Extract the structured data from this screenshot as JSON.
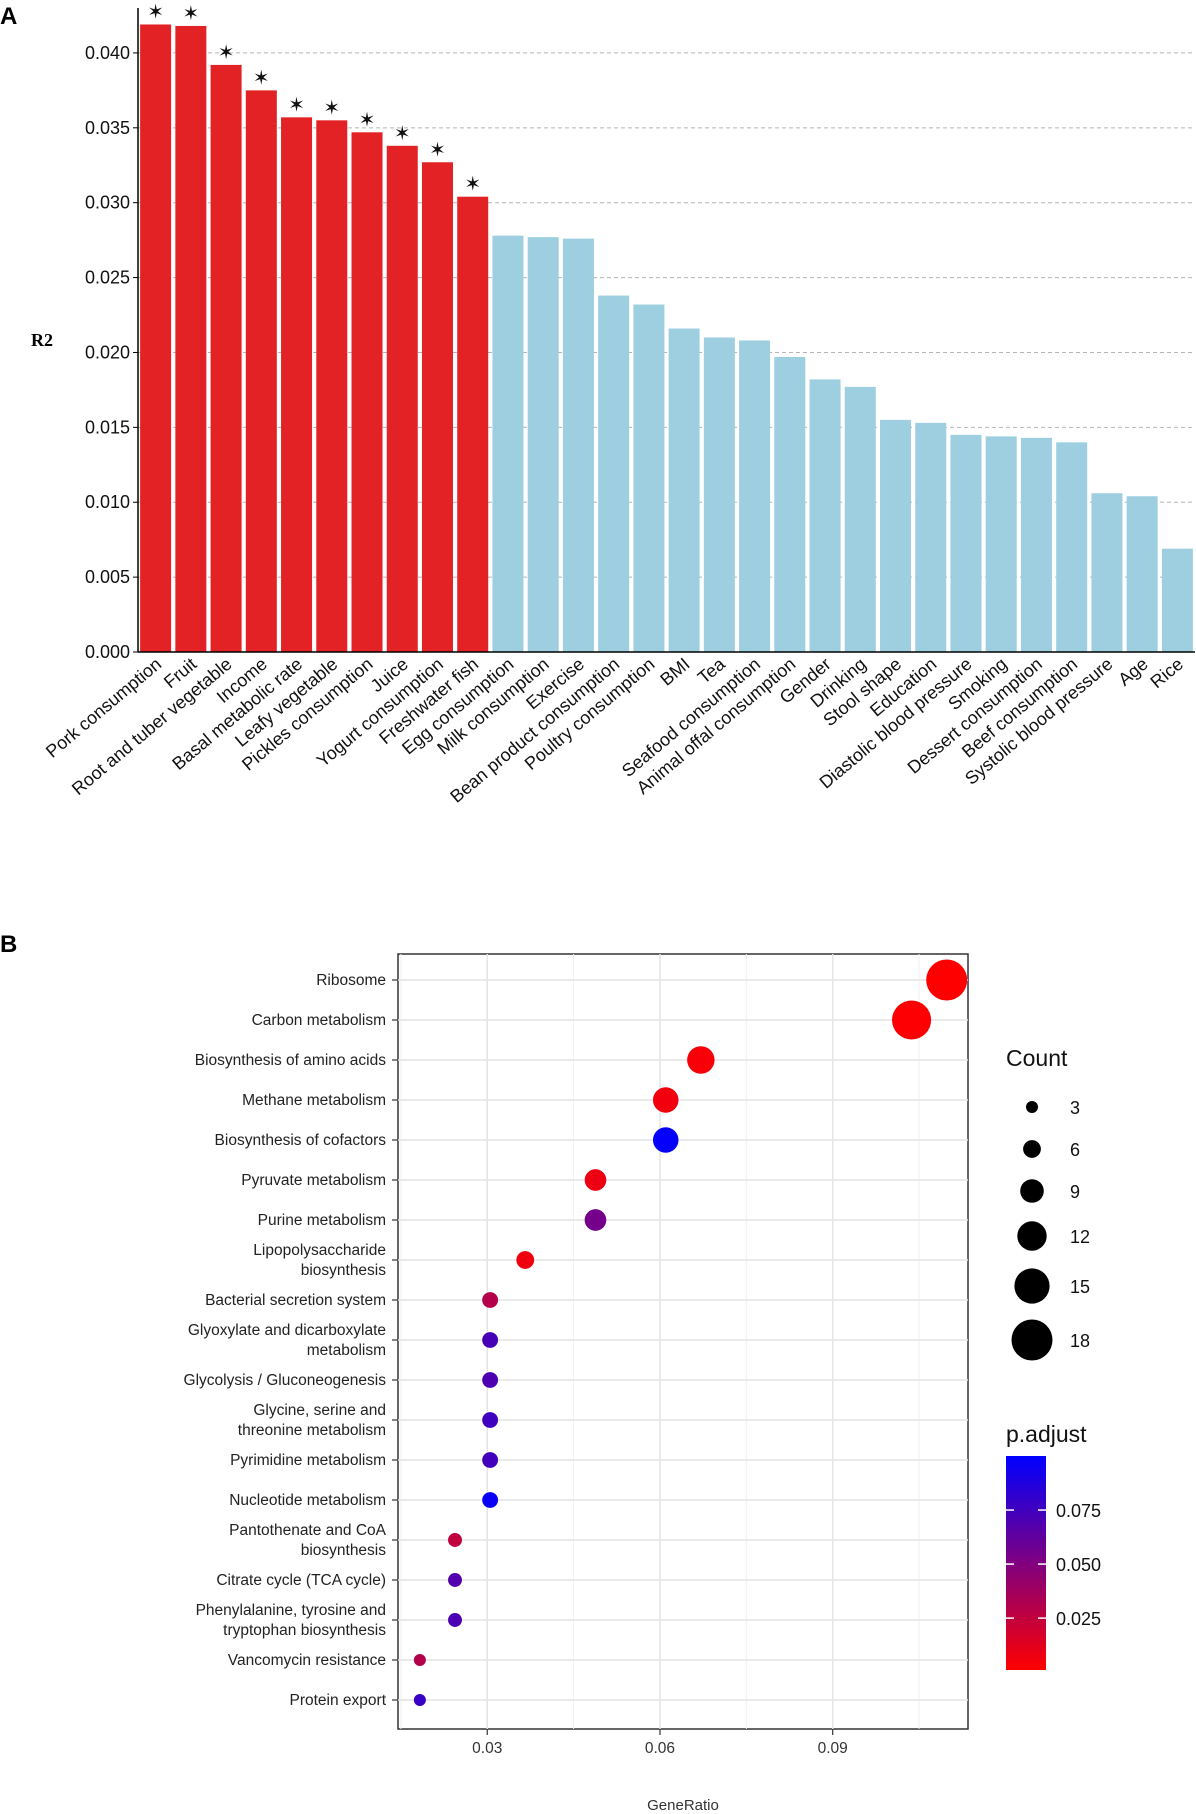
{
  "panel_a_label": "A",
  "panel_b_label": "B",
  "chart_data": [
    {
      "type": "bar",
      "ylabel": "R2",
      "xlabel": "",
      "ylim": [
        0,
        0.043
      ],
      "yticks": [
        "0.000",
        "0.005",
        "0.010",
        "0.015",
        "0.020",
        "0.025",
        "0.030",
        "0.035",
        "0.040"
      ],
      "ytick_values": [
        0,
        0.005,
        0.01,
        0.015,
        0.02,
        0.025,
        0.03,
        0.035,
        0.04
      ],
      "grid": "horizontal dashed",
      "significance_marker": "✶",
      "colors": {
        "significant": "#e32226",
        "not_significant": "#9dcfe1"
      },
      "categories": [
        "Pork consumption",
        "Fruit",
        "Root and tuber vegetable",
        "Income",
        "Basal metabolic rate",
        "Leafy vegetable",
        "Pickles consumption",
        "Juice",
        "Yogurt consumption",
        "Freshwater fish",
        "Egg consumption",
        "Milk consumption",
        "Exercise",
        "Bean product consumption",
        "Poultry consumption",
        "BMI",
        "Tea",
        "Seafood consumption",
        "Animal offal consumption",
        "Gender",
        "Drinking",
        "Stool shape",
        "Education",
        "Diastolic blood pressure",
        "Smoking",
        "Dessert consumption",
        "Beef consumption",
        "Systolic blood pressure",
        "Age",
        "Rice"
      ],
      "values": [
        0.0419,
        0.0418,
        0.0392,
        0.0375,
        0.0357,
        0.0355,
        0.0347,
        0.0338,
        0.0327,
        0.0304,
        0.0278,
        0.0277,
        0.0276,
        0.0238,
        0.0232,
        0.0216,
        0.021,
        0.0208,
        0.0197,
        0.0182,
        0.0177,
        0.0155,
        0.0153,
        0.0145,
        0.0144,
        0.0143,
        0.014,
        0.0106,
        0.0104,
        0.0069
      ],
      "significant": [
        true,
        true,
        true,
        true,
        true,
        true,
        true,
        true,
        true,
        true,
        false,
        false,
        false,
        false,
        false,
        false,
        false,
        false,
        false,
        false,
        false,
        false,
        false,
        false,
        false,
        false,
        false,
        false,
        false,
        false
      ]
    },
    {
      "type": "scatter",
      "xlabel": "GeneRatio",
      "ylabel": "",
      "xlim": [
        0.0145,
        0.1135
      ],
      "xticks": [
        "0.03",
        "0.06",
        "0.09"
      ],
      "xtick_values": [
        0.03,
        0.06,
        0.09
      ],
      "grid": "on",
      "categories": [
        "Ribosome",
        "Carbon metabolism",
        "Biosynthesis of amino acids",
        "Methane metabolism",
        "Biosynthesis of cofactors",
        "Pyruvate metabolism",
        "Purine metabolism",
        "Lipopolysaccharide\nbiosynthesis",
        "Bacterial secretion system",
        "Glyoxylate and dicarboxylate\nmetabolism",
        "Glycolysis / Gluconeogenesis",
        "Glycine, serine and\nthreonine metabolism",
        "Pyrimidine metabolism",
        "Nucleotide metabolism",
        "Pantothenate and CoA\nbiosynthesis",
        "Citrate cycle (TCA cycle)",
        "Phenylalanine, tyrosine and\ntryptophan biosynthesis",
        "Vancomycin resistance",
        "Protein export"
      ],
      "gene_ratio": [
        0.1098,
        0.1037,
        0.0671,
        0.061,
        0.061,
        0.0488,
        0.0488,
        0.0366,
        0.0305,
        0.0305,
        0.0305,
        0.0305,
        0.0305,
        0.0305,
        0.0244,
        0.0244,
        0.0244,
        0.0183,
        0.0183
      ],
      "count": [
        18,
        17,
        11,
        10,
        10,
        8,
        8,
        6,
        5,
        5,
        5,
        5,
        5,
        5,
        4,
        4,
        4,
        3,
        3
      ],
      "p_adjust": [
        0.001,
        0.002,
        0.004,
        0.006,
        0.098,
        0.008,
        0.055,
        0.007,
        0.03,
        0.072,
        0.07,
        0.075,
        0.074,
        0.097,
        0.025,
        0.068,
        0.071,
        0.03,
        0.078
      ],
      "size_legend": {
        "title": "Count",
        "labels": [
          "3",
          "6",
          "9",
          "12",
          "15",
          "18"
        ],
        "values": [
          3,
          6,
          9,
          12,
          15,
          18
        ]
      },
      "color_legend": {
        "title": "p.adjust",
        "labels": [
          "0.075",
          "0.050",
          "0.025"
        ],
        "values": [
          0.075,
          0.05,
          0.025
        ],
        "range": [
          0.001,
          0.1
        ],
        "low_color": "#ff0000",
        "high_color": "#0000ff"
      }
    }
  ]
}
